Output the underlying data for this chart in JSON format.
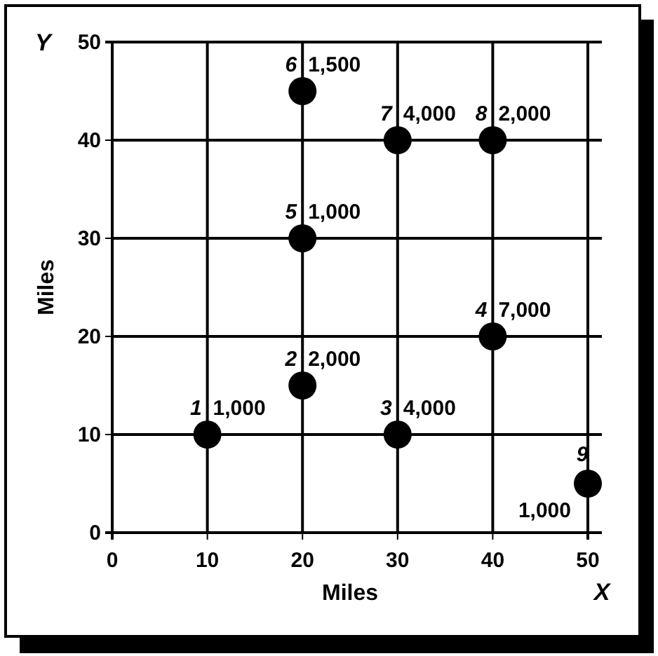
{
  "chart_data": {
    "type": "scatter",
    "xlabel": "Miles",
    "ylabel": "Miles",
    "x": [
      10,
      20,
      30,
      40,
      20,
      20,
      30,
      40,
      50
    ],
    "values": [
      10,
      15,
      10,
      20,
      30,
      45,
      40,
      40,
      5
    ],
    "color": "#000000",
    "marker": "circle",
    "grid": true,
    "xlim": [
      0,
      50
    ],
    "ylim": [
      0,
      50
    ],
    "xticks": [
      0,
      10,
      20,
      30,
      40,
      50
    ],
    "yticks": [
      0,
      10,
      20,
      30,
      40,
      50
    ],
    "annotations": [
      "Y",
      "X",
      {
        "text": "1",
        "x": 10,
        "y": 10
      },
      {
        "text": "1,000",
        "x": 10,
        "y": 10
      },
      {
        "text": "2",
        "x": 20,
        "y": 15
      },
      {
        "text": "2,000",
        "x": 20,
        "y": 15
      },
      {
        "text": "3",
        "x": 30,
        "y": 10
      },
      {
        "text": "4,000",
        "x": 30,
        "y": 10
      },
      {
        "text": "4",
        "x": 40,
        "y": 20
      },
      {
        "text": "7,000",
        "x": 40,
        "y": 20
      },
      {
        "text": "5",
        "x": 20,
        "y": 30
      },
      {
        "text": "1,000",
        "x": 20,
        "y": 30
      },
      {
        "text": "6",
        "x": 20,
        "y": 45
      },
      {
        "text": "1,500",
        "x": 20,
        "y": 45
      },
      {
        "text": "7",
        "x": 30,
        "y": 40
      },
      {
        "text": "4,000",
        "x": 30,
        "y": 40
      },
      {
        "text": "8",
        "x": 40,
        "y": 40
      },
      {
        "text": "2,000",
        "x": 40,
        "y": 40
      },
      {
        "text": "9",
        "x": 50,
        "y": 5
      },
      {
        "text": "1,000",
        "x": 50,
        "y": 5
      }
    ]
  }
}
